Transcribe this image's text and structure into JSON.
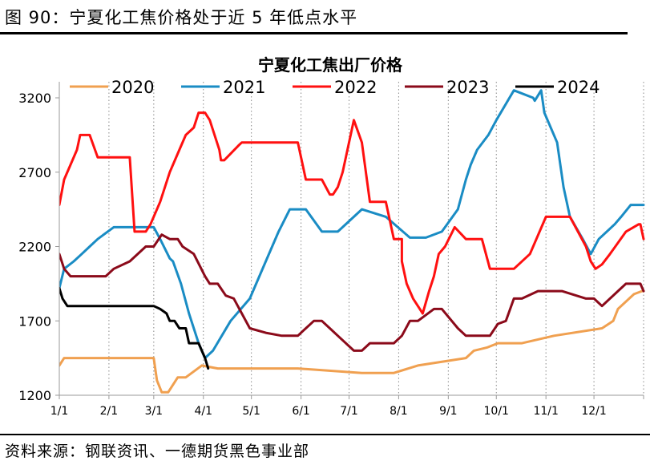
{
  "header": {
    "figure_title": "图 90：宁夏化工焦价格处于近 5 年低点水平"
  },
  "footer": {
    "source": "资料来源：钢联资讯、一德期货黑色事业部"
  },
  "chart_data": {
    "type": "line",
    "title": "宁夏化工焦出厂价格",
    "xlabel": "",
    "ylabel": "",
    "ylim": [
      1200,
      3200
    ],
    "yticks": [
      1200,
      1700,
      2200,
      2700,
      3200
    ],
    "xticks": [
      "1/1",
      "2/1",
      "3/1",
      "4/1",
      "5/1",
      "6/1",
      "7/1",
      "8/1",
      "9/1",
      "10/1",
      "11/1",
      "12/1"
    ],
    "xlim_day": [
      1,
      366
    ],
    "grid": "vertical dotted",
    "legend": "top",
    "colors": {
      "2020": "#F0A050",
      "2021": "#1A8CC4",
      "2022": "#FF1010",
      "2023": "#8B0A1A",
      "2024": "#000000"
    },
    "series": [
      {
        "name": "2020",
        "x": [
          1,
          4,
          10,
          60,
          62,
          65,
          69,
          75,
          80,
          90,
          100,
          110,
          120,
          150,
          190,
          210,
          225,
          255,
          260,
          268,
          275,
          290,
          310,
          340,
          347,
          350,
          360,
          365,
          366
        ],
        "y": [
          1400,
          1450,
          1450,
          1450,
          1300,
          1220,
          1220,
          1320,
          1320,
          1400,
          1380,
          1380,
          1380,
          1380,
          1350,
          1350,
          1400,
          1450,
          1500,
          1520,
          1550,
          1550,
          1600,
          1650,
          1700,
          1780,
          1880,
          1900,
          1900
        ]
      },
      {
        "name": "2021",
        "x": [
          1,
          4,
          10,
          15,
          20,
          25,
          35,
          45,
          60,
          64,
          70,
          72,
          77,
          82,
          88,
          92,
          97,
          108,
          120,
          130,
          138,
          145,
          155,
          165,
          175,
          190,
          205,
          220,
          230,
          240,
          250,
          255,
          258,
          262,
          269,
          274,
          285,
          297,
          298,
          302,
          304,
          312,
          316,
          320,
          328,
          333,
          338,
          348,
          352,
          358,
          366
        ],
        "y": [
          1920,
          2050,
          2100,
          2150,
          2200,
          2250,
          2330,
          2330,
          2330,
          2250,
          2120,
          2100,
          1950,
          1750,
          1550,
          1450,
          1500,
          1700,
          1850,
          2100,
          2300,
          2450,
          2450,
          2300,
          2300,
          2450,
          2400,
          2260,
          2260,
          2300,
          2450,
          2650,
          2750,
          2850,
          2950,
          3050,
          3250,
          3200,
          3180,
          3250,
          3100,
          2900,
          2600,
          2400,
          2250,
          2150,
          2250,
          2350,
          2400,
          2480,
          2480
        ]
      },
      {
        "name": "2022",
        "x": [
          1,
          4,
          8,
          12,
          14,
          20,
          25,
          32,
          45,
          48,
          55,
          58,
          64,
          70,
          72,
          76,
          80,
          85,
          88,
          92,
          95,
          101,
          102,
          104,
          113,
          115,
          118,
          125,
          130,
          138,
          150,
          155,
          160,
          165,
          170,
          172,
          175,
          178,
          185,
          190,
          195,
          205,
          210,
          215,
          215,
          218,
          222,
          228,
          232,
          235,
          238,
          242,
          248,
          255,
          265,
          270,
          275,
          285,
          295,
          305,
          310,
          315,
          320,
          325,
          330,
          333,
          336,
          340,
          345,
          355,
          363,
          364,
          366
        ],
        "y": [
          2480,
          2650,
          2750,
          2850,
          2950,
          2950,
          2800,
          2800,
          2800,
          2300,
          2300,
          2350,
          2500,
          2700,
          2750,
          2850,
          2950,
          3000,
          3100,
          3100,
          3050,
          2850,
          2780,
          2780,
          2880,
          2900,
          2900,
          2900,
          2900,
          2900,
          2900,
          2650,
          2650,
          2650,
          2550,
          2550,
          2600,
          2700,
          3050,
          2900,
          2500,
          2500,
          2250,
          2250,
          2100,
          1950,
          1850,
          1750,
          1900,
          2000,
          2150,
          2200,
          2330,
          2250,
          2250,
          2050,
          2050,
          2050,
          2150,
          2400,
          2400,
          2400,
          2400,
          2300,
          2200,
          2100,
          2050,
          2080,
          2150,
          2300,
          2350,
          2350,
          2250
        ]
      },
      {
        "name": "2023",
        "x": [
          1,
          4,
          8,
          12,
          20,
          30,
          35,
          45,
          55,
          60,
          65,
          70,
          75,
          78,
          85,
          92,
          95,
          100,
          105,
          110,
          115,
          120,
          130,
          140,
          150,
          155,
          160,
          165,
          170,
          175,
          185,
          190,
          195,
          210,
          215,
          220,
          225,
          235,
          240,
          250,
          255,
          270,
          275,
          280,
          285,
          290,
          300,
          315,
          330,
          335,
          340,
          350,
          355,
          360,
          364,
          366
        ],
        "y": [
          2150,
          2050,
          2000,
          2000,
          2000,
          2000,
          2050,
          2100,
          2200,
          2200,
          2280,
          2250,
          2250,
          2200,
          2150,
          2000,
          1950,
          1950,
          1870,
          1850,
          1750,
          1650,
          1620,
          1600,
          1600,
          1650,
          1700,
          1700,
          1650,
          1600,
          1500,
          1500,
          1550,
          1550,
          1600,
          1700,
          1700,
          1780,
          1780,
          1650,
          1600,
          1600,
          1680,
          1700,
          1850,
          1850,
          1900,
          1900,
          1850,
          1850,
          1800,
          1900,
          1950,
          1950,
          1950,
          1900
        ]
      },
      {
        "name": "2024",
        "x": [
          1,
          3,
          6,
          10,
          20,
          30,
          40,
          50,
          60,
          64,
          68,
          70,
          73,
          76,
          80,
          82,
          85,
          88,
          92,
          94
        ],
        "y": [
          1920,
          1850,
          1800,
          1800,
          1800,
          1800,
          1800,
          1800,
          1800,
          1780,
          1750,
          1700,
          1700,
          1650,
          1650,
          1550,
          1550,
          1550,
          1450,
          1380
        ]
      }
    ]
  }
}
